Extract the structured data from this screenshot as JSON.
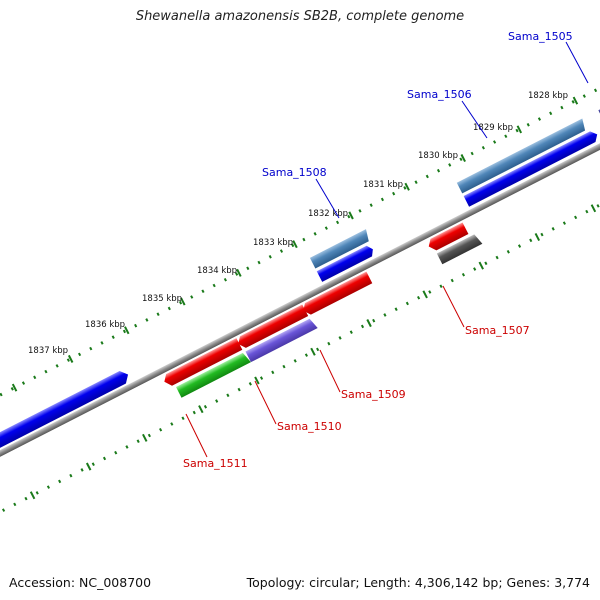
{
  "title": "Shewanella amazonensis SB2B, complete genome",
  "footer": {
    "accession": "Accession: NC_008700",
    "summary": "Topology: circular; Length: 4,306,142 bp; Genes: 3,774"
  },
  "ruler_labels": [
    "1828 kbp",
    "1829 kbp",
    "1830 kbp",
    "1831 kbp",
    "1832 kbp",
    "1833 kbp",
    "1834 kbp",
    "1835 kbp",
    "1836 kbp",
    "1837 kbp"
  ],
  "genes": [
    {
      "label": "Sama_1505",
      "label_color": "#0000cc"
    },
    {
      "label": "Sama_1506",
      "label_color": "#0000cc"
    },
    {
      "label": "Sama_1508",
      "label_color": "#0000cc"
    },
    {
      "label": "Sama_1507",
      "label_color": "#cc0000"
    },
    {
      "label": "Sama_1509",
      "label_color": "#cc0000"
    },
    {
      "label": "Sama_1510",
      "label_color": "#cc0000"
    },
    {
      "label": "Sama_1511",
      "label_color": "#cc0000"
    }
  ],
  "colors": {
    "forward_cds": "#0000ee",
    "reverse_cds": "#ee0000",
    "steelblue_feature": "#4f86b8",
    "navy_feature": "#0a0a6a",
    "purple_feature": "#6a55d8",
    "green_feature": "#22bb22",
    "gray_feature": "#555555",
    "backbone": "#8a8a8a",
    "tick": "#1a7a1a"
  }
}
